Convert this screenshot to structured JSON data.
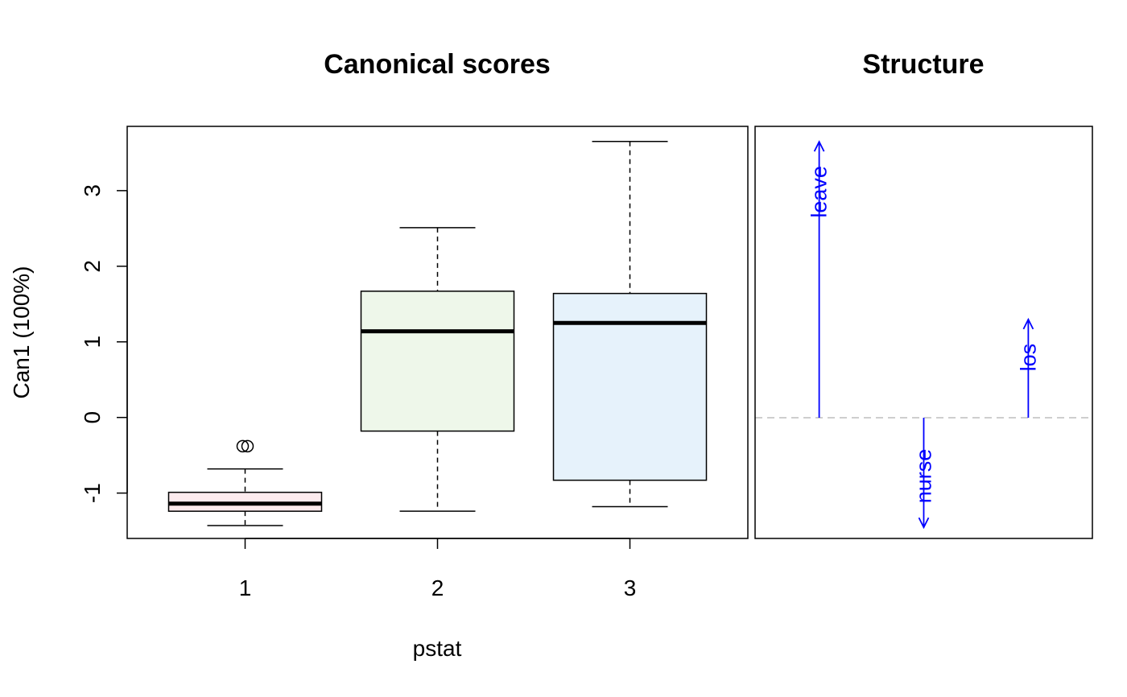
{
  "chart_data": [
    {
      "type": "box",
      "title": "Canonical scores",
      "xlabel": "pstat",
      "ylabel": "Can1 (100%)",
      "categories": [
        "1",
        "2",
        "3"
      ],
      "ylim": [
        -1.6,
        3.85
      ],
      "yticks": [
        -1,
        0,
        1,
        2,
        3
      ],
      "fills": [
        "#fdebee",
        "#eef7ea",
        "#e6f2fb"
      ],
      "boxes": [
        {
          "group": "1",
          "whisker_low": -1.43,
          "q1": -1.24,
          "median": -1.14,
          "q3": -0.99,
          "whisker_high": -0.68,
          "outliers": [
            -0.38
          ]
        },
        {
          "group": "2",
          "whisker_low": -1.24,
          "q1": -0.18,
          "median": 1.14,
          "q3": 1.67,
          "whisker_high": 2.51,
          "outliers": []
        },
        {
          "group": "3",
          "whisker_low": -1.18,
          "q1": -0.83,
          "median": 1.25,
          "q3": 1.64,
          "whisker_high": 3.65,
          "outliers": []
        }
      ]
    },
    {
      "type": "vector",
      "title": "Structure",
      "color": "#0000ff",
      "baseline_color": "#bebebe",
      "vectors": [
        {
          "name": "leave",
          "position": 1,
          "value": 3.65
        },
        {
          "name": "nurse",
          "position": 2,
          "value": -1.45
        },
        {
          "name": "los",
          "position": 3,
          "value": 1.3
        }
      ]
    }
  ]
}
